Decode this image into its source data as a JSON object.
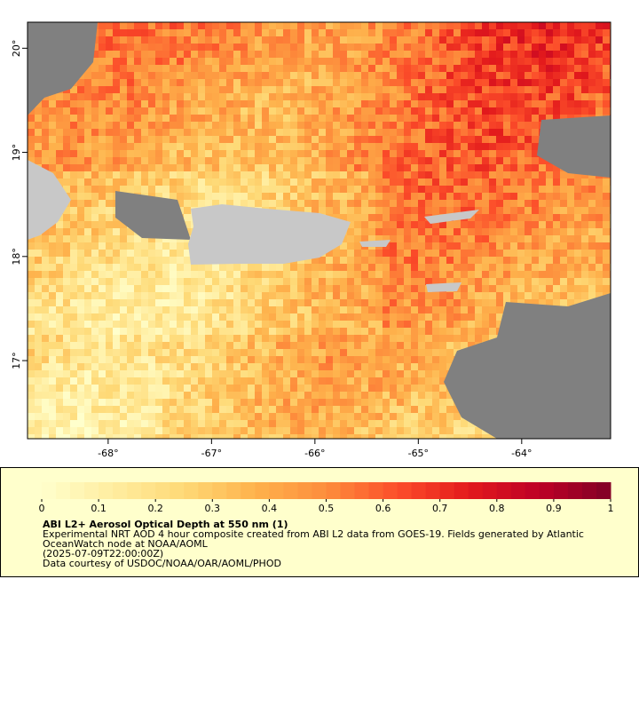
{
  "map": {
    "xlim": [
      -68.78,
      -63.14
    ],
    "ylim": [
      16.25,
      20.25
    ],
    "xticks": [
      {
        "value": -68,
        "label": "-68°"
      },
      {
        "value": -67,
        "label": "-67°"
      },
      {
        "value": -66,
        "label": "-66°"
      },
      {
        "value": -65,
        "label": "-65°"
      },
      {
        "value": -64,
        "label": "-64°"
      }
    ],
    "yticks": [
      {
        "value": 17,
        "label": "17°"
      },
      {
        "value": 18,
        "label": "18°"
      },
      {
        "value": 19,
        "label": "19°"
      },
      {
        "value": 20,
        "label": "20°"
      }
    ]
  },
  "colorbar": {
    "lim": [
      0,
      1
    ],
    "ticks": [
      0,
      0.1,
      0.2,
      0.3,
      0.4,
      0.5,
      0.6,
      0.7,
      0.8,
      0.9,
      1
    ],
    "colors": [
      "#ffffcc",
      "#ffeda0",
      "#fed976",
      "#feb24c",
      "#fd8d3c",
      "#fc4e2a",
      "#e31a1c",
      "#bd0026",
      "#800026"
    ]
  },
  "legend": {
    "title": "ABI L2+ Aerosol Optical Depth at 550 nm (1)",
    "lines": [
      "Experimental NRT AOD 4 hour composite created from ABI L2 data from GOES-19. Fields generated by Atlantic",
      "OceanWatch node at NOAA/AOML",
      "(2025-07-09T22:00:00Z)",
      "Data courtesy of USDOC/NOAA/OAR/AOML/PHOD"
    ]
  }
}
